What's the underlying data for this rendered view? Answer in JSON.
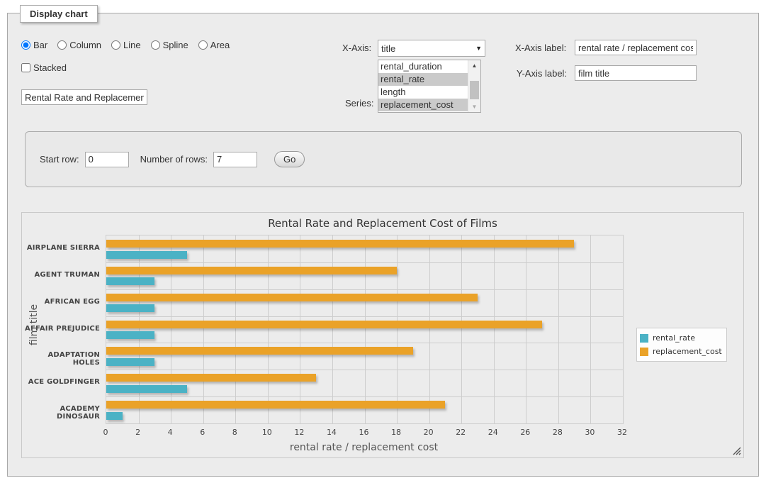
{
  "panel": {
    "title": "Display chart"
  },
  "chart_type": {
    "options": [
      {
        "label": "Bar",
        "checked": "checked"
      },
      {
        "label": "Column"
      },
      {
        "label": "Line"
      },
      {
        "label": "Spline"
      },
      {
        "label": "Area"
      }
    ]
  },
  "stacked": {
    "label": "Stacked"
  },
  "chart_title_input": {
    "value": "Rental Rate and Replacement Cost of Films"
  },
  "axis_controls": {
    "x_axis_label": "X-Axis:",
    "x_axis_selected": "title",
    "series_label": "Series:",
    "series_options": [
      {
        "label": "rental_duration",
        "selected": false
      },
      {
        "label": "rental_rate",
        "selected": true
      },
      {
        "label": "length",
        "selected": false
      },
      {
        "label": "replacement_cost",
        "selected": true
      }
    ]
  },
  "label_controls": {
    "x_label": "X-Axis label:",
    "x_value": "rental rate / replacement cost",
    "y_label": "Y-Axis label:",
    "y_value": "film title"
  },
  "row_controls": {
    "start_row_label": "Start row:",
    "start_row_value": "0",
    "num_rows_label": "Number of rows:",
    "num_rows_value": "7",
    "go_label": "Go"
  },
  "chart_data": {
    "type": "bar",
    "orientation": "horizontal",
    "title": "Rental Rate and Replacement Cost of Films",
    "xlabel": "rental rate / replacement cost",
    "ylabel": "film title",
    "categories_top_to_bottom": [
      "AIRPLANE SIERRA",
      "AGENT TRUMAN",
      "AFRICAN EGG",
      "AFFAIR PREJUDICE",
      "ADAPTATION HOLES",
      "ACE GOLDFINGER",
      "ACADEMY DINOSAUR"
    ],
    "series": [
      {
        "name": "rental_rate",
        "color": "#4bb2c5",
        "values": [
          4.99,
          2.99,
          2.99,
          2.99,
          2.99,
          4.99,
          0.99
        ]
      },
      {
        "name": "replacement_cost",
        "color": "#eaa228",
        "values": [
          28.99,
          17.99,
          22.99,
          26.99,
          18.99,
          12.99,
          20.99
        ]
      }
    ],
    "xlim": [
      0,
      32
    ],
    "xticks": [
      0,
      2,
      4,
      6,
      8,
      10,
      12,
      14,
      16,
      18,
      20,
      22,
      24,
      26,
      28,
      30,
      32
    ],
    "grid": true,
    "legend_position": "right",
    "bar_order_in_band_top_to_bottom": [
      "replacement_cost",
      "rental_rate"
    ]
  }
}
